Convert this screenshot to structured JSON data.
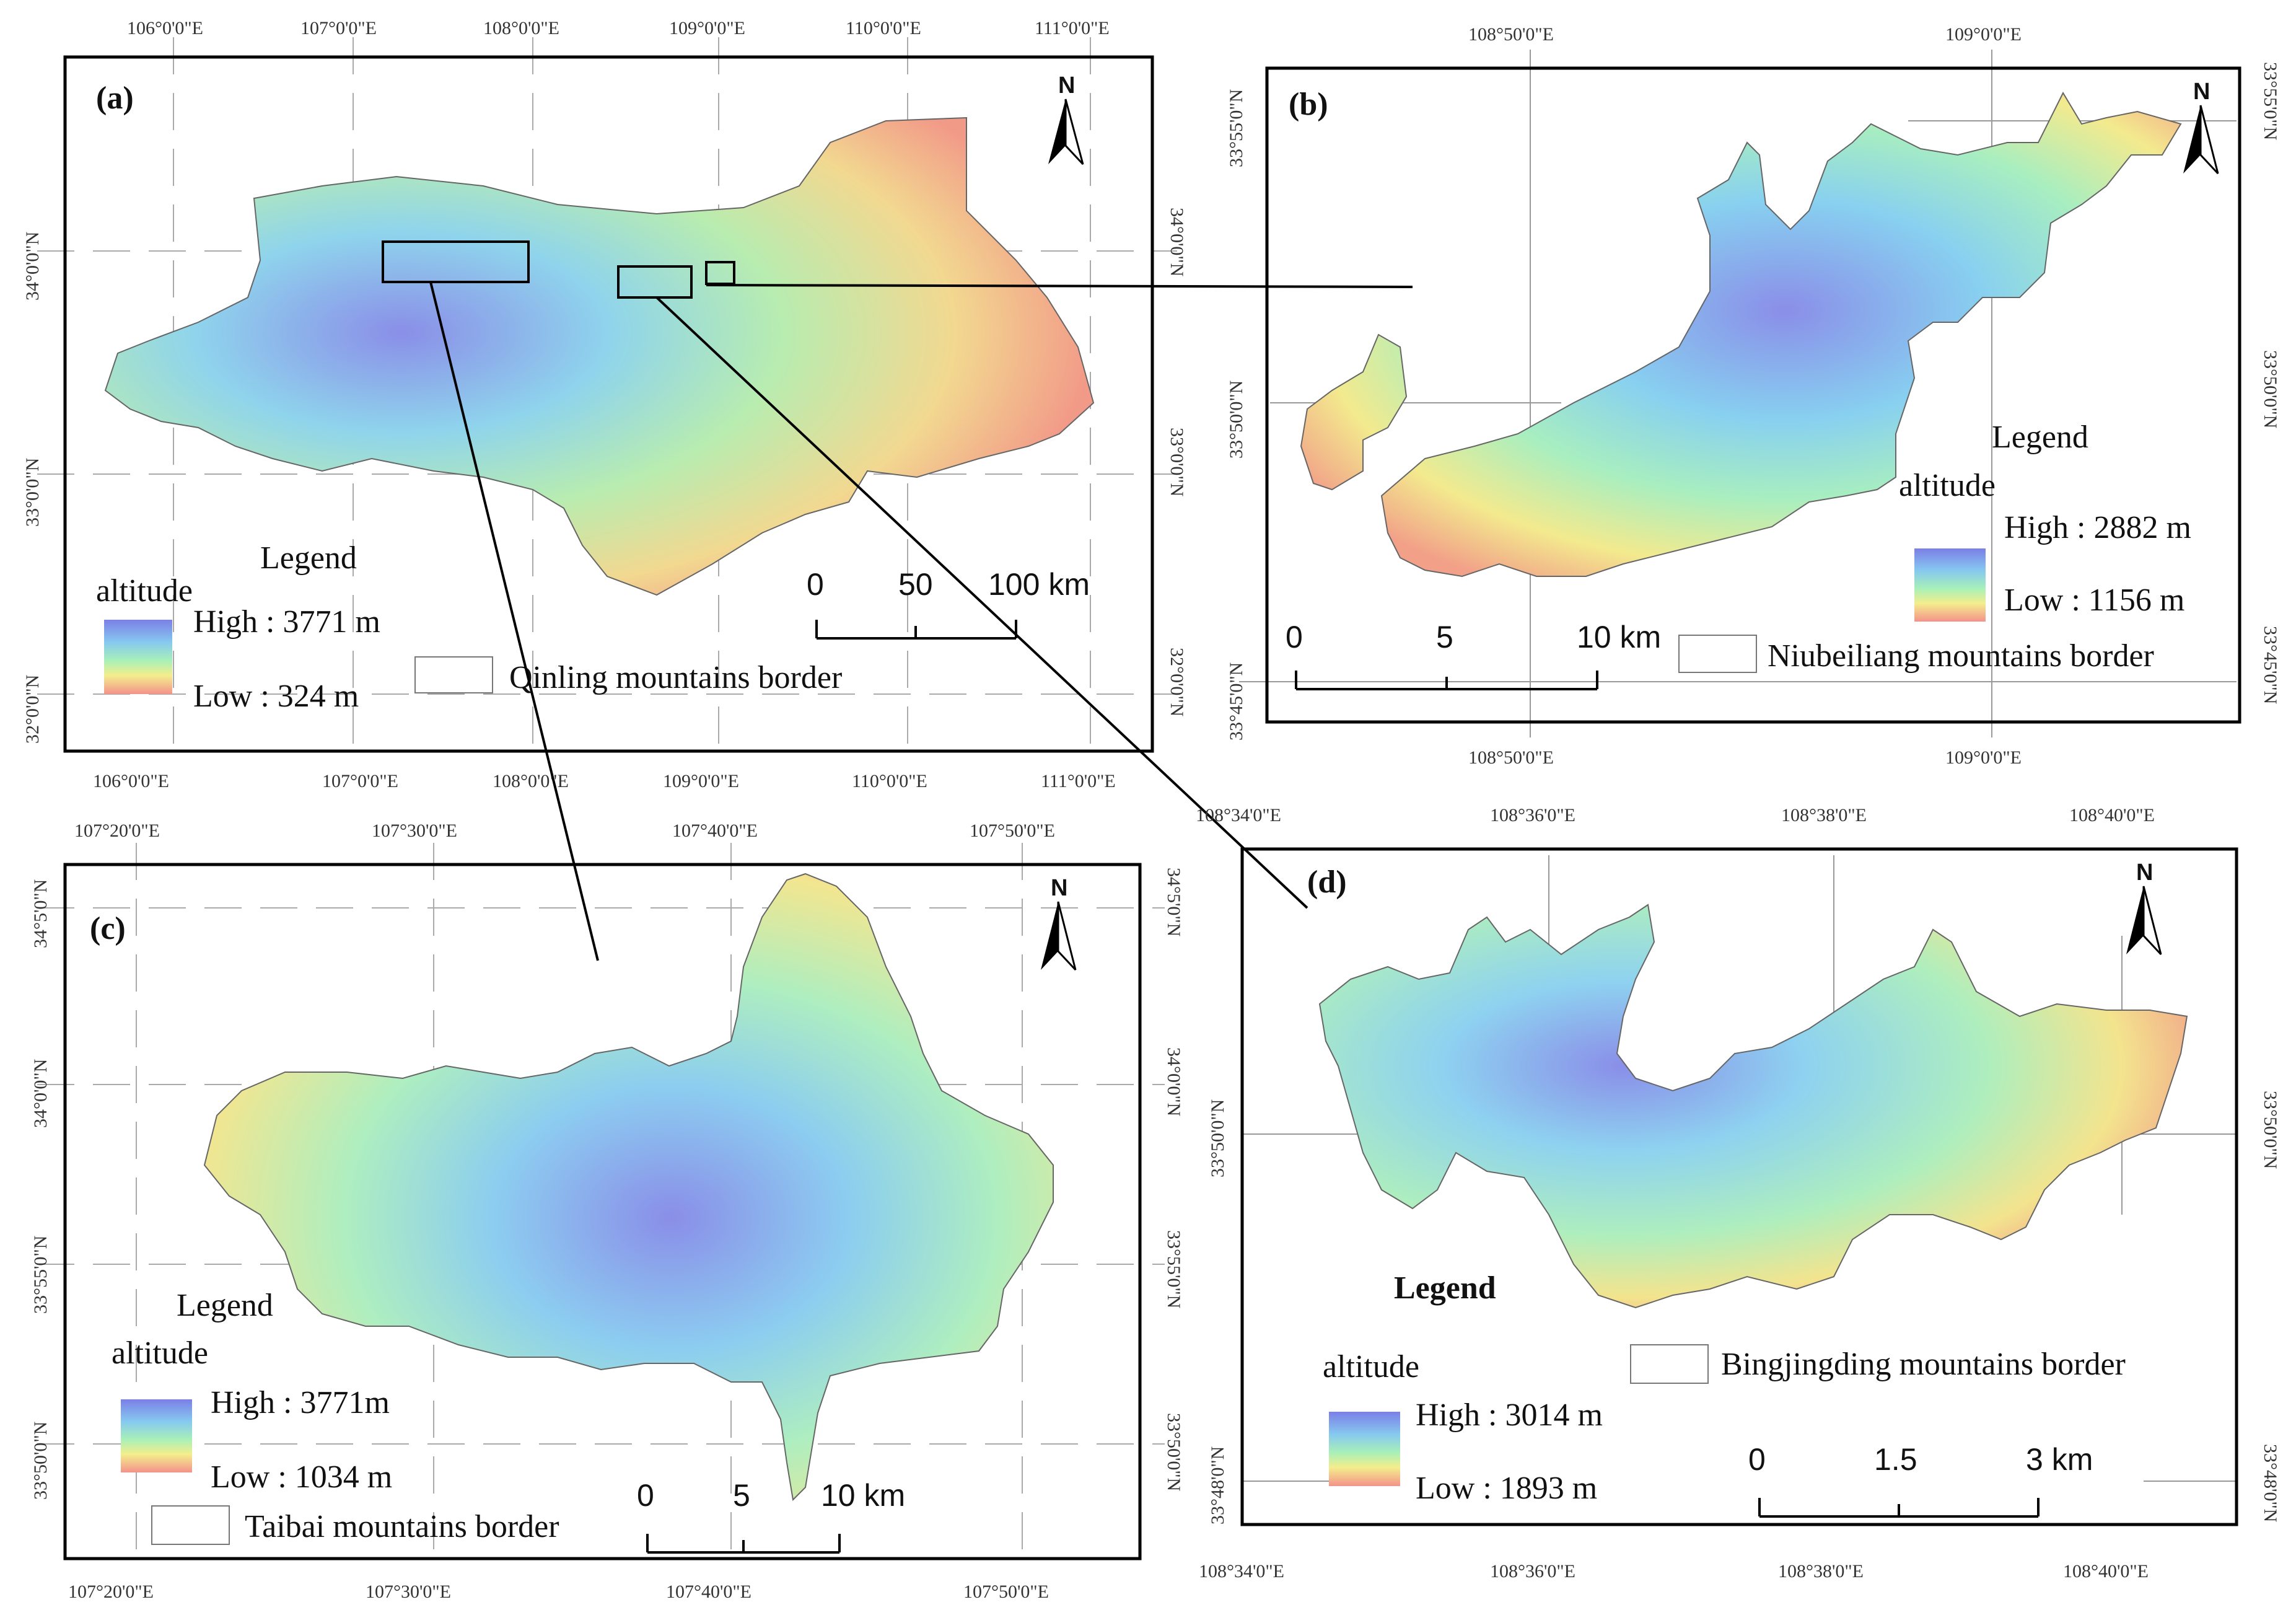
{
  "panels": {
    "a": {
      "label": "(a)",
      "legend_title": "Legend",
      "legend_sub": "altitude",
      "high": "High : 3771 m",
      "low": "Low : 324 m",
      "border": "Qinling mountains border",
      "scale": [
        "0",
        "50",
        "100 km"
      ],
      "north": "N",
      "lon_top": [
        "106°0'0\"E",
        "107°0'0\"E",
        "108°0'0\"E",
        "109°0'0\"E",
        "110°0'0\"E",
        "111°0'0\"E"
      ],
      "lon_bottom": [
        "106°0'0\"E",
        "107°0'0\"E",
        "108°0'0\"E",
        "109°0'0\"E",
        "110°0'0\"E",
        "111°0'0\"E"
      ],
      "lat_left": [
        "34°0'0\"N",
        "33°0'0\"N",
        "32°0'0\"N"
      ],
      "lat_right": [
        "34°0'0\"N",
        "33°0'0\"N",
        "32°0'0\"N"
      ]
    },
    "b": {
      "label": "(b)",
      "legend_title": "Legend",
      "legend_sub": "altitude",
      "high": "High : 2882 m",
      "low": "Low : 1156 m",
      "border": "Niubeiliang mountains border",
      "scale": [
        "0",
        "5",
        "10 km"
      ],
      "north": "N",
      "lon_top": [
        "108°50'0\"E",
        "109°0'0\"E"
      ],
      "lon_bottom": [
        "108°50'0\"E",
        "109°0'0\"E"
      ],
      "lat_left": [
        "33°55'0\"N",
        "33°50'0\"N",
        "33°45'0\"N"
      ],
      "lat_right": [
        "33°55'0\"N",
        "33°50'0\"N",
        "33°45'0\"N"
      ]
    },
    "c": {
      "label": "(c)",
      "legend_title": "Legend",
      "legend_sub": "altitude",
      "high": "High : 3771m",
      "low": "Low : 1034 m",
      "border": "Taibai mountains border",
      "scale": [
        "0",
        "5",
        "10 km"
      ],
      "north": "N",
      "lon_top": [
        "107°20'0\"E",
        "107°30'0\"E",
        "107°40'0\"E",
        "107°50'0\"E"
      ],
      "lon_bottom": [
        "107°20'0\"E",
        "107°30'0\"E",
        "107°40'0\"E",
        "107°50'0\"E"
      ],
      "lat_left": [
        "34°5'0\"N",
        "34°0'0\"N",
        "33°55'0\"N",
        "33°50'0\"N"
      ],
      "lat_right": [
        "34°5'0\"N",
        "34°0'0\"N",
        "33°55'0\"N",
        "33°50'0\"N"
      ]
    },
    "d": {
      "label": "(d)",
      "legend_title": "Legend",
      "legend_sub": "altitude",
      "high": "High : 3014 m",
      "low": "Low : 1893 m",
      "border": "Bingjingding mountains border",
      "scale": [
        "0",
        "1.5",
        "3 km"
      ],
      "north": "N",
      "lon_top": [
        "108°34'0\"E",
        "108°36'0\"E",
        "108°38'0\"E",
        "108°40'0\"E"
      ],
      "lon_bottom": [
        "108°34'0\"E",
        "108°36'0\"E",
        "108°38'0\"E",
        "108°40'0\"E"
      ],
      "lat_left": [
        "33°50'0\"N",
        "33°48'0\"N"
      ],
      "lat_right": [
        "33°50'0\"N",
        "33°48'0\"N"
      ]
    }
  },
  "colors": {
    "high": "#7b7fe6",
    "mid_high": "#86c8f0",
    "mid": "#8fe8c8",
    "mid_low": "#f4ee8c",
    "low": "#f4928a"
  }
}
